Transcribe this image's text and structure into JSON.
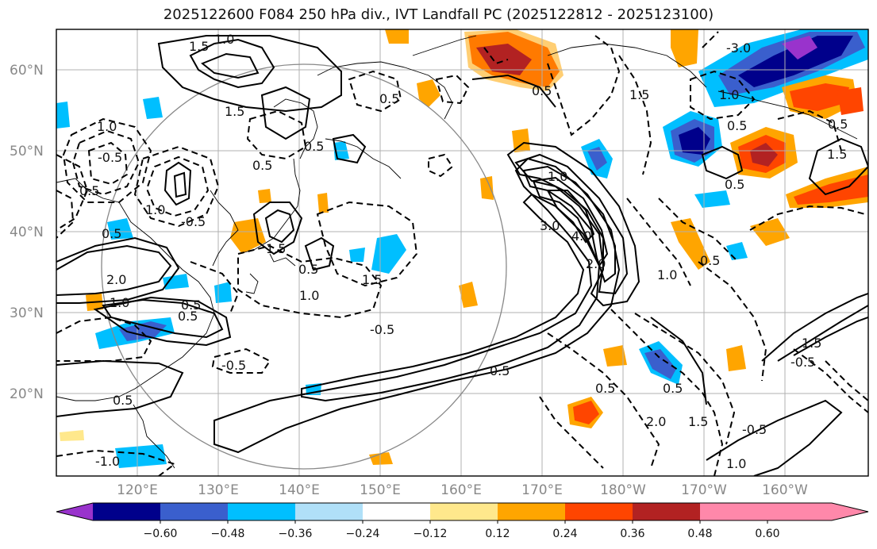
{
  "title": "2025122600 F084 250 hPa div., IVT Landfall PC (2025122812 - 2025123100)",
  "lat_labels": [
    "60°N",
    "50°N",
    "40°N",
    "30°N",
    "20°N"
  ],
  "lon_labels": [
    "120°E",
    "130°E",
    "140°E",
    "150°E",
    "160°E",
    "170°E",
    "180°W",
    "170°W",
    "160°W"
  ],
  "colorbar": {
    "ticks": [
      "−0.60",
      "−0.48",
      "−0.36",
      "−0.24",
      "−0.12",
      "0.12",
      "0.24",
      "0.36",
      "0.48",
      "0.60"
    ],
    "colors": [
      "#9933cc",
      "#00008b",
      "#3a5fcd",
      "#00bfff",
      "#b0e0f8",
      "#ffffff",
      "#ffe88c",
      "#ffa500",
      "#ff4500",
      "#b22222",
      "#ff88aa"
    ]
  },
  "contour_labels": {
    "a": "1.5",
    "b": "1.0",
    "c": "1.5",
    "d": "0.5",
    "e": "1.0",
    "f": "-0.5",
    "g": "0.5",
    "h": "1.0",
    "i": "-0.5",
    "j": "0.5",
    "k": "0.5",
    "l": "1.5",
    "m": "2.0",
    "n": "1.0",
    "o": "0.5",
    "p": "-0.5",
    "q": "1.0",
    "r": "1.5",
    "s": "-0.5",
    "t": "0.5",
    "u": "4.0",
    "v": "3.0",
    "w": "1.0",
    "x": "1.5",
    "y": "0.5",
    "z": "-3.0",
    "aa": "1.0",
    "ab": "0.5",
    "ac": "0.5",
    "ad": "0.5",
    "ae": "1.5",
    "af": "0.5",
    "ag": "-0.5",
    "ah": "0.5",
    "ai": "2.0",
    "aj": "1.5",
    "ak": "-0.5",
    "al": "1.0",
    "am": "0.5",
    "an": "1.5",
    "ao": "0.5",
    "ap": "-1.0",
    "aq": "0.5",
    "ar": "2.0",
    "as": "1.0",
    "at": "0.5",
    "au": "0.5"
  }
}
